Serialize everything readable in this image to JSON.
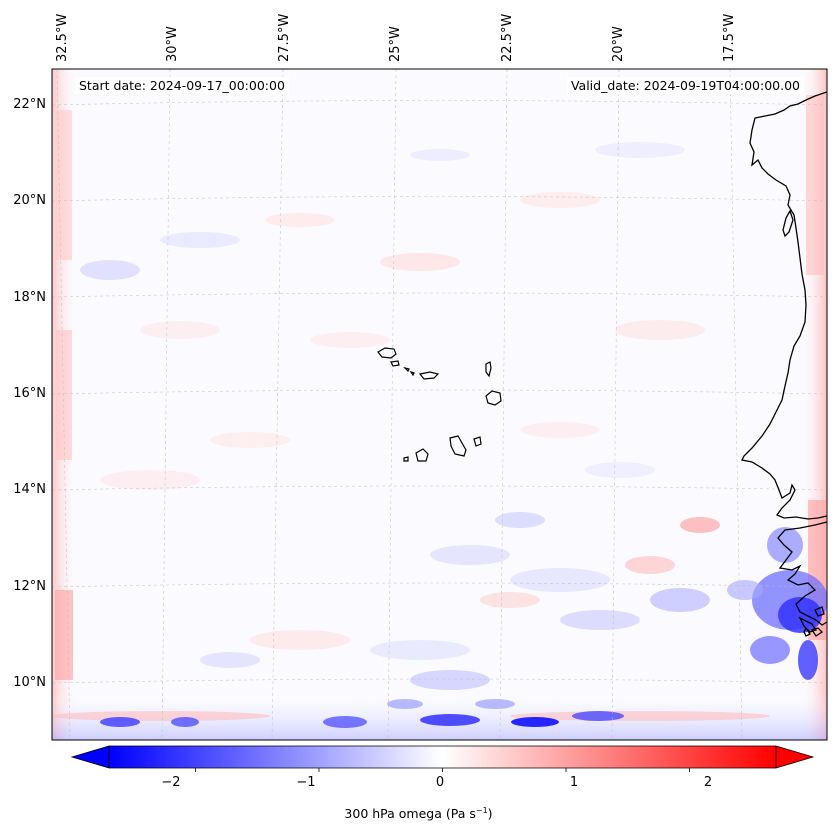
{
  "map": {
    "start_date": "Start date: 2024-09-17_00:00:00",
    "valid_date": "Valid_date: 2024-09-19T04:00:00.00",
    "lon_labels": [
      "32.5°W",
      "30°W",
      "27.5°W",
      "25°W",
      "22.5°W",
      "20°W",
      "17.5°W"
    ],
    "lat_labels": [
      "22°N",
      "20°N",
      "18°N",
      "16°N",
      "14°N",
      "12°N",
      "10°N"
    ],
    "extent": {
      "lon_min": -33.0,
      "lon_max": -15.8,
      "lat_min": 8.9,
      "lat_max": 22.7
    }
  },
  "colorbar": {
    "ticks": [
      "−2",
      "−1",
      "0",
      "1",
      "2"
    ],
    "range": [
      -2.7,
      2.7
    ],
    "label_main": "300 hPa omega (Pa s",
    "label_sup": "−1",
    "label_end": ")",
    "colors": {
      "negative": "#0000ff",
      "neutral": "#ffffff",
      "positive": "#ff0000"
    }
  }
}
